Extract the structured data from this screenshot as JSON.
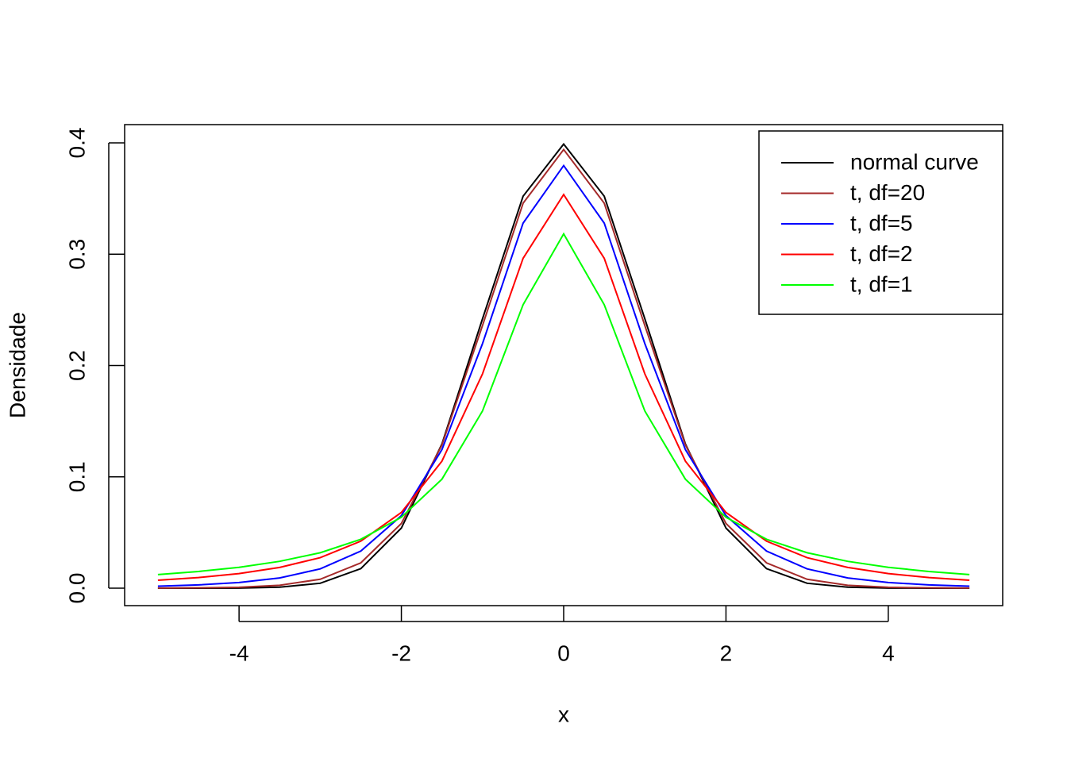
{
  "chart_data": {
    "type": "line",
    "x_label": "x",
    "y_label": "Densidade",
    "x": [
      -5,
      -4.5,
      -4,
      -3.5,
      -3,
      -2.5,
      -2,
      -1.5,
      -1,
      -0.5,
      0,
      0.5,
      1,
      1.5,
      2,
      2.5,
      3,
      3.5,
      4,
      4.5,
      5
    ],
    "series": [
      {
        "name": "normal curve",
        "color": "#000000",
        "values": [
          0.0,
          0.0,
          0.0001,
          0.0009,
          0.0044,
          0.0175,
          0.054,
          0.1295,
          0.242,
          0.3521,
          0.3989,
          0.3521,
          0.242,
          0.1295,
          0.054,
          0.0175,
          0.0044,
          0.0009,
          0.0001,
          0.0,
          0.0
        ]
      },
      {
        "name": "t, df=20",
        "color": "#a52a2a",
        "values": [
          0.0001,
          0.0003,
          0.0008,
          0.0026,
          0.008,
          0.0227,
          0.0581,
          0.1286,
          0.236,
          0.3458,
          0.394,
          0.3458,
          0.236,
          0.1286,
          0.0581,
          0.0227,
          0.008,
          0.0026,
          0.0008,
          0.0003,
          0.0001
        ]
      },
      {
        "name": "t, df=5",
        "color": "#0000ff",
        "values": [
          0.0018,
          0.0029,
          0.0051,
          0.0092,
          0.0173,
          0.0333,
          0.0651,
          0.1245,
          0.2197,
          0.3279,
          0.3796,
          0.3279,
          0.2197,
          0.1245,
          0.0651,
          0.0333,
          0.0173,
          0.0092,
          0.0051,
          0.0029,
          0.0018
        ]
      },
      {
        "name": "t, df=2",
        "color": "#ff0000",
        "values": [
          0.0071,
          0.0095,
          0.0131,
          0.0186,
          0.0274,
          0.0422,
          0.068,
          0.1141,
          0.1925,
          0.2963,
          0.3536,
          0.2963,
          0.1925,
          0.1141,
          0.068,
          0.0422,
          0.0274,
          0.0186,
          0.0131,
          0.0095,
          0.0071
        ]
      },
      {
        "name": "t, df=1",
        "color": "#00ff00",
        "values": [
          0.0122,
          0.015,
          0.0187,
          0.0241,
          0.0318,
          0.0439,
          0.0637,
          0.0979,
          0.1592,
          0.2546,
          0.3183,
          0.2546,
          0.1592,
          0.0979,
          0.0637,
          0.0439,
          0.0318,
          0.0241,
          0.0187,
          0.015,
          0.0122
        ]
      }
    ],
    "xlim": [
      -5.41,
      5.41
    ],
    "ylim": [
      -0.0157,
      0.4164
    ],
    "xticks": [
      -4,
      -2,
      0,
      2,
      4
    ],
    "yticks": [
      {
        "value": 0,
        "label": "0.0"
      },
      0.1,
      0.2,
      0.3,
      0.4
    ],
    "legend": "top-right"
  }
}
